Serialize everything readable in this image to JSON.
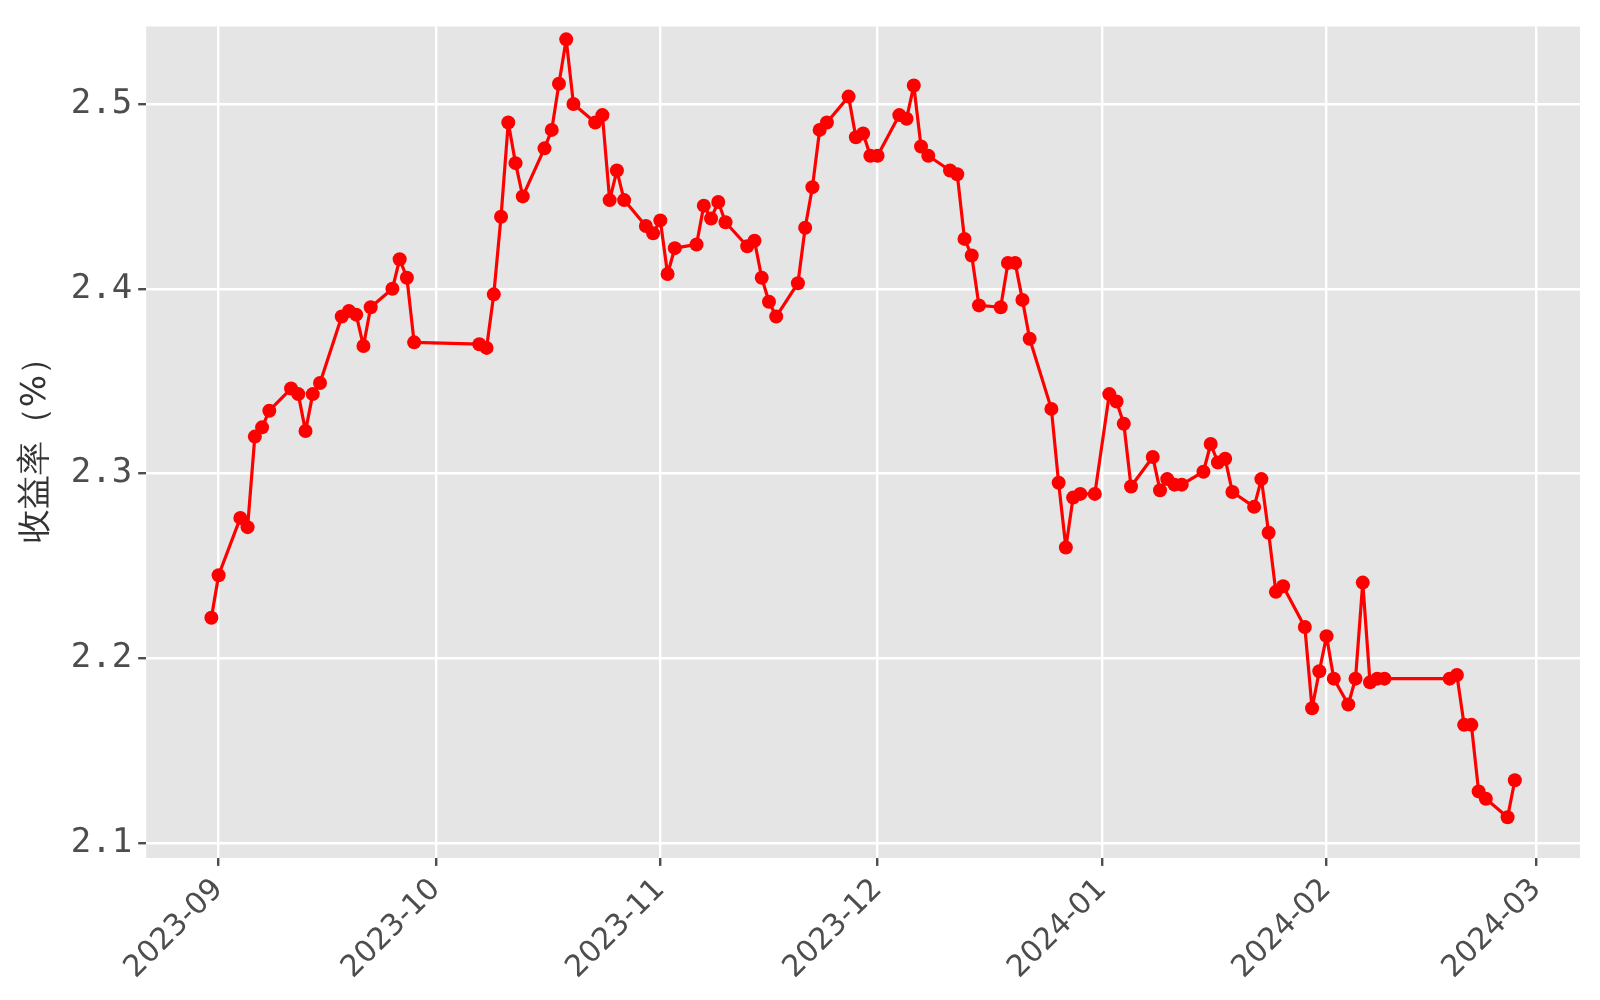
{
  "chart_data": {
    "type": "line",
    "ylabel": "收益率（%）",
    "x": [
      "2023-08-31",
      "2023-09-01",
      "2023-09-04",
      "2023-09-05",
      "2023-09-06",
      "2023-09-07",
      "2023-09-08",
      "2023-09-11",
      "2023-09-12",
      "2023-09-13",
      "2023-09-14",
      "2023-09-15",
      "2023-09-18",
      "2023-09-19",
      "2023-09-20",
      "2023-09-21",
      "2023-09-22",
      "2023-09-25",
      "2023-09-26",
      "2023-09-27",
      "2023-09-28",
      "2023-10-07",
      "2023-10-08",
      "2023-10-09",
      "2023-10-10",
      "2023-10-11",
      "2023-10-12",
      "2023-10-13",
      "2023-10-16",
      "2023-10-17",
      "2023-10-18",
      "2023-10-19",
      "2023-10-20",
      "2023-10-23",
      "2023-10-24",
      "2023-10-25",
      "2023-10-26",
      "2023-10-27",
      "2023-10-30",
      "2023-10-31",
      "2023-11-01",
      "2023-11-02",
      "2023-11-03",
      "2023-11-06",
      "2023-11-07",
      "2023-11-08",
      "2023-11-09",
      "2023-11-10",
      "2023-11-13",
      "2023-11-14",
      "2023-11-15",
      "2023-11-16",
      "2023-11-17",
      "2023-11-20",
      "2023-11-21",
      "2023-11-22",
      "2023-11-23",
      "2023-11-24",
      "2023-11-27",
      "2023-11-28",
      "2023-11-29",
      "2023-11-30",
      "2023-12-01",
      "2023-12-04",
      "2023-12-05",
      "2023-12-06",
      "2023-12-07",
      "2023-12-08",
      "2023-12-11",
      "2023-12-12",
      "2023-12-13",
      "2023-12-14",
      "2023-12-15",
      "2023-12-18",
      "2023-12-19",
      "2023-12-20",
      "2023-12-21",
      "2023-12-22",
      "2023-12-25",
      "2023-12-26",
      "2023-12-27",
      "2023-12-28",
      "2023-12-29",
      "2023-12-31",
      "2024-01-02",
      "2024-01-03",
      "2024-01-04",
      "2024-01-05",
      "2024-01-08",
      "2024-01-09",
      "2024-01-10",
      "2024-01-11",
      "2024-01-12",
      "2024-01-15",
      "2024-01-16",
      "2024-01-17",
      "2024-01-18",
      "2024-01-19",
      "2024-01-22",
      "2024-01-23",
      "2024-01-24",
      "2024-01-25",
      "2024-01-26",
      "2024-01-29",
      "2024-01-30",
      "2024-01-31",
      "2024-02-01",
      "2024-02-02",
      "2024-02-04",
      "2024-02-05",
      "2024-02-06",
      "2024-02-07",
      "2024-02-08",
      "2024-02-09",
      "2024-02-18",
      "2024-02-19",
      "2024-02-20",
      "2024-02-21",
      "2024-02-22",
      "2024-02-23",
      "2024-02-26",
      "2024-02-27"
    ],
    "values": [
      2.222,
      2.245,
      2.276,
      2.271,
      2.32,
      2.325,
      2.334,
      2.346,
      2.343,
      2.323,
      2.343,
      2.349,
      2.385,
      2.388,
      2.386,
      2.369,
      2.39,
      2.4,
      2.416,
      2.406,
      2.371,
      2.37,
      2.368,
      2.397,
      2.439,
      2.49,
      2.468,
      2.45,
      2.476,
      2.486,
      2.511,
      2.535,
      2.5,
      2.49,
      2.494,
      2.448,
      2.464,
      2.448,
      2.434,
      2.43,
      2.437,
      2.408,
      2.422,
      2.424,
      2.445,
      2.438,
      2.447,
      2.436,
      2.423,
      2.426,
      2.406,
      2.393,
      2.385,
      2.403,
      2.433,
      2.455,
      2.486,
      2.49,
      2.504,
      2.482,
      2.484,
      2.472,
      2.472,
      2.494,
      2.492,
      2.51,
      2.477,
      2.472,
      2.464,
      2.462,
      2.427,
      2.418,
      2.391,
      2.39,
      2.414,
      2.414,
      2.394,
      2.373,
      2.335,
      2.295,
      2.26,
      2.287,
      2.289,
      2.289,
      2.343,
      2.339,
      2.327,
      2.293,
      2.309,
      2.291,
      2.297,
      2.294,
      2.294,
      2.301,
      2.316,
      2.306,
      2.308,
      2.29,
      2.282,
      2.297,
      2.268,
      2.236,
      2.239,
      2.217,
      2.173,
      2.193,
      2.212,
      2.189,
      2.175,
      2.189,
      2.241,
      2.187,
      2.189,
      2.189,
      2.189,
      2.191,
      2.164,
      2.164,
      2.128,
      2.124,
      2.114,
      2.134
    ],
    "color": "#ff0000",
    "marker": "circle",
    "line_style": "solid",
    "xlim": [
      "2023-08-22",
      "2024-03-07"
    ],
    "xticks": [
      "2023-09",
      "2023-10",
      "2023-11",
      "2023-12",
      "2024-01",
      "2024-02",
      "2024-03"
    ],
    "ylim": [
      2.092,
      2.542
    ],
    "yticks": [
      2.1,
      2.2,
      2.3,
      2.4,
      2.5
    ],
    "grid": true,
    "legend": false
  }
}
